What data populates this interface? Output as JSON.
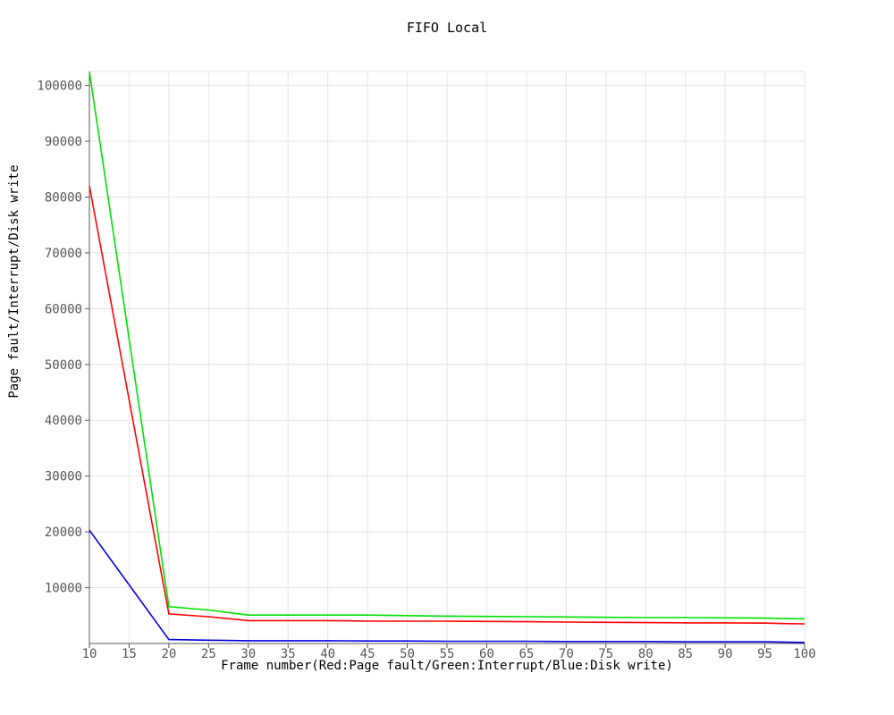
{
  "chart_data": {
    "type": "line",
    "title": "FIFO Local",
    "xlabel": "Frame number(Red:Page fault/Green:Interrupt/Blue:Disk write)",
    "ylabel": "Page fault/Interrupt/Disk write",
    "xlim": [
      10,
      100
    ],
    "ylim": [
      0,
      102500
    ],
    "grid": true,
    "x": [
      10,
      20,
      25,
      30,
      35,
      40,
      45,
      50,
      55,
      60,
      65,
      70,
      75,
      80,
      85,
      90,
      95,
      100
    ],
    "xticks": [
      10,
      15,
      20,
      25,
      30,
      35,
      40,
      45,
      50,
      55,
      60,
      65,
      70,
      75,
      80,
      85,
      90,
      95,
      100
    ],
    "yticks": [
      10000,
      20000,
      30000,
      40000,
      50000,
      60000,
      70000,
      80000,
      90000,
      100000
    ],
    "series": [
      {
        "color": "#00e000",
        "values": [
          102500,
          6600,
          6000,
          5100,
          5100,
          5100,
          5100,
          5000,
          4900,
          4850,
          4800,
          4750,
          4700,
          4650,
          4650,
          4600,
          4550,
          4400
        ]
      },
      {
        "color": "#ff0000",
        "values": [
          82000,
          5300,
          4800,
          4100,
          4100,
          4100,
          4000,
          4000,
          4000,
          3950,
          3900,
          3850,
          3800,
          3750,
          3700,
          3700,
          3650,
          3500
        ]
      },
      {
        "color": "#0000e0",
        "values": [
          20300,
          700,
          600,
          500,
          500,
          500,
          450,
          450,
          400,
          400,
          400,
          350,
          350,
          350,
          300,
          300,
          300,
          200
        ]
      }
    ]
  }
}
